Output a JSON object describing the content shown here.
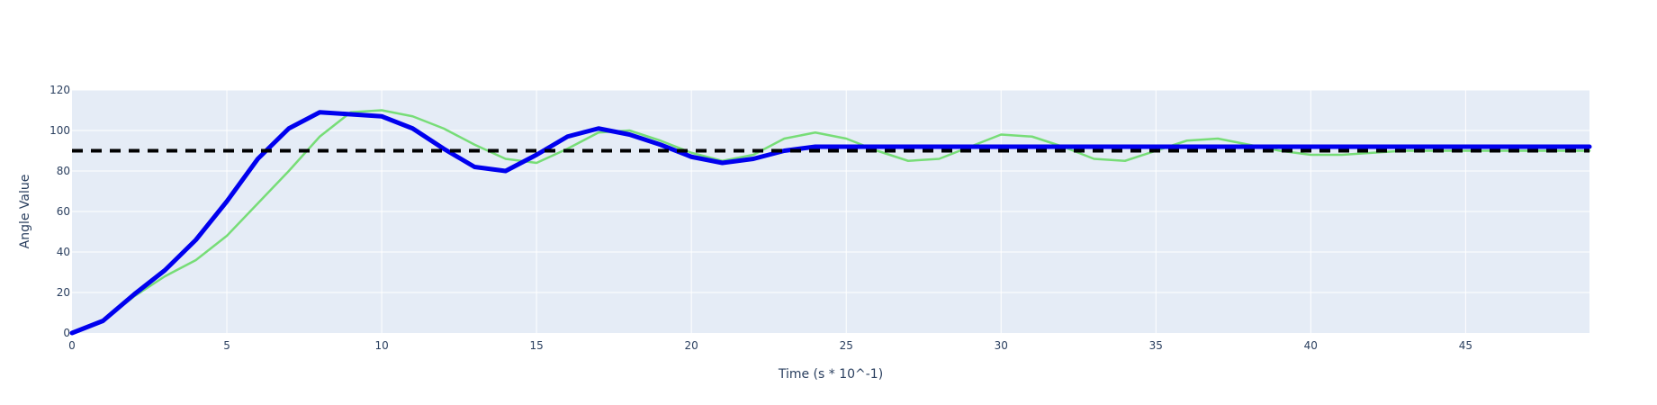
{
  "chart_data": {
    "type": "line",
    "title": "",
    "xlabel": "Time (s * 10^-1)",
    "ylabel": "Angle Value",
    "xlim": [
      0,
      49
    ],
    "ylim": [
      0,
      120
    ],
    "x_ticks": [
      0,
      5,
      10,
      15,
      20,
      25,
      30,
      35,
      40,
      45
    ],
    "y_ticks": [
      0,
      20,
      40,
      60,
      80,
      100,
      120
    ],
    "grid": true,
    "legend": "none",
    "colors": {
      "plot_background": "#e5ecf6",
      "grid": "#ffffff",
      "axis_text": "#2a3f5f"
    },
    "series": [
      {
        "style": "solid",
        "color": "#77dd77",
        "x": [
          0,
          1,
          2,
          3,
          4,
          5,
          6,
          7,
          8,
          9,
          10,
          11,
          12,
          13,
          14,
          15,
          16,
          17,
          18,
          19,
          20,
          21,
          22,
          23,
          24,
          25,
          26,
          27,
          28,
          29,
          30,
          31,
          32,
          33,
          34,
          35,
          36,
          37,
          38,
          39,
          40,
          41,
          42,
          43,
          44,
          45,
          46,
          47,
          48,
          49
        ],
        "values": [
          0,
          6,
          18,
          28,
          36,
          48,
          64,
          80,
          97,
          109,
          110,
          107,
          101,
          93,
          86,
          84,
          91,
          99,
          100,
          95,
          89,
          85,
          88,
          96,
          99,
          96,
          90,
          85,
          86,
          92,
          98,
          97,
          92,
          86,
          85,
          90,
          95,
          96,
          93,
          90,
          88,
          88,
          89,
          90,
          90,
          90,
          90,
          90,
          90,
          90
        ]
      },
      {
        "style": "solid",
        "color": "#0000ee",
        "x": [
          0,
          1,
          2,
          3,
          4,
          5,
          6,
          7,
          8,
          9,
          10,
          11,
          12,
          13,
          14,
          15,
          16,
          17,
          18,
          19,
          20,
          21,
          22,
          23,
          24,
          25,
          26,
          27,
          28,
          29,
          30,
          31,
          32,
          33,
          34,
          35,
          36,
          37,
          38,
          39,
          40,
          41,
          42,
          43,
          44,
          45,
          46,
          47,
          48,
          49
        ],
        "values": [
          0,
          6,
          19,
          31,
          46,
          65,
          86,
          101,
          109,
          108,
          107,
          101,
          91,
          82,
          80,
          88,
          97,
          101,
          98,
          93,
          87,
          84,
          86,
          90,
          92,
          92,
          92,
          92,
          92,
          92,
          92,
          92,
          92,
          92,
          92,
          92,
          92,
          92,
          92,
          92,
          92,
          92,
          92,
          92,
          92,
          92,
          92,
          92,
          92,
          92
        ]
      },
      {
        "style": "dashed",
        "color": "#000000",
        "x": [
          0,
          49
        ],
        "values": [
          90,
          90
        ]
      }
    ]
  }
}
